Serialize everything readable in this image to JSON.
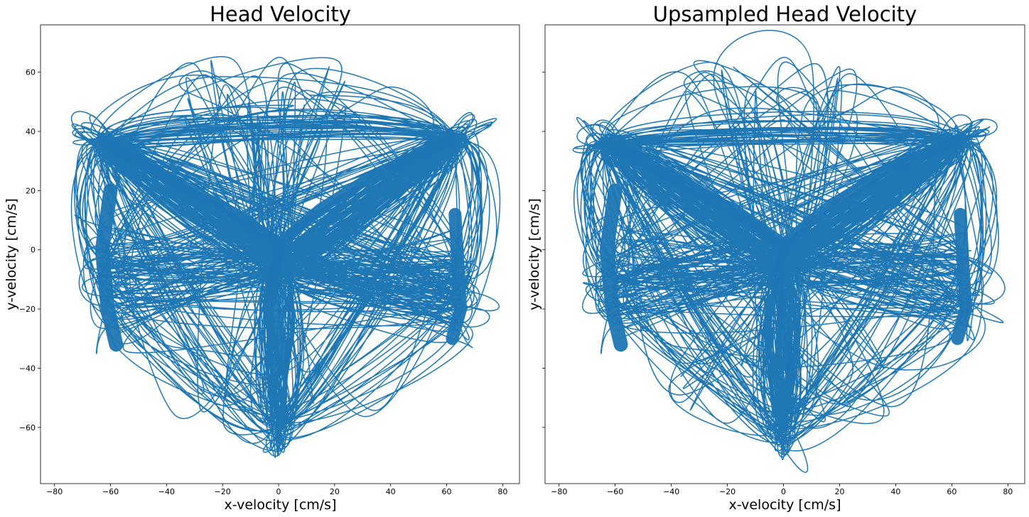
{
  "figure": {
    "colors": {
      "line": "#1f77b4",
      "axes": "#000000",
      "background": "#ffffff"
    }
  },
  "chart_data": [
    {
      "type": "line",
      "title": "Head Velocity",
      "xlabel": "x-velocity [cm/s]",
      "ylabel": "y-velocity [cm/s]",
      "xlim": [
        -85,
        86
      ],
      "ylim": [
        -79,
        76
      ],
      "xticks": [
        -80,
        -60,
        -40,
        -20,
        0,
        20,
        40,
        60,
        80
      ],
      "yticks": [
        -60,
        -40,
        -20,
        0,
        20,
        40,
        60
      ],
      "xtick_labels": [
        "−80",
        "−60",
        "−40",
        "−20",
        "0",
        "20",
        "40",
        "60",
        "80"
      ],
      "ytick_labels": [
        "−60",
        "−40",
        "−20",
        "0",
        "20",
        "40",
        "60"
      ],
      "show_ytick_labels": true,
      "grid": false,
      "series_color": "#1f77b4",
      "series": [
        {
          "name": "",
          "shape": "three-lobed velocity trajectory: arms from origin toward (-62,35), (62,37) and (0,-68); dense vertical bands near x=-62 and x=63 spanning y=-35..20",
          "x": [
            0,
            -30,
            -62,
            -70,
            -55,
            -62,
            -65,
            -60,
            -30,
            0,
            25,
            45,
            62,
            72,
            65,
            62,
            68,
            60,
            30,
            0,
            5,
            -3,
            2,
            0,
            -20,
            -45,
            -55,
            -50,
            -20,
            0,
            15,
            40,
            55,
            48,
            20,
            0,
            -10,
            -25,
            -35,
            -10,
            0
          ],
          "y": [
            0,
            18,
            36,
            30,
            0,
            -20,
            -35,
            -25,
            -10,
            0,
            15,
            28,
            37,
            30,
            5,
            -15,
            -30,
            -25,
            -10,
            0,
            -30,
            -55,
            -68,
            -40,
            -35,
            -30,
            -10,
            15,
            40,
            65,
            45,
            55,
            45,
            30,
            10,
            0,
            45,
            60,
            55,
            40,
            0
          ]
        }
      ]
    },
    {
      "type": "line",
      "title": "Upsampled Head Velocity",
      "xlabel": "x-velocity [cm/s]",
      "ylabel": "y-velocity [cm/s]",
      "xlim": [
        -85,
        86
      ],
      "ylim": [
        -79,
        76
      ],
      "xticks": [
        -80,
        -60,
        -40,
        -20,
        0,
        20,
        40,
        60,
        80
      ],
      "yticks": [
        -60,
        -40,
        -20,
        0,
        20,
        40,
        60
      ],
      "xtick_labels": [
        "−80",
        "−60",
        "−40",
        "−20",
        "0",
        "20",
        "40",
        "60",
        "80"
      ],
      "ytick_labels": [
        "",
        "",
        "",
        "",
        "",
        "",
        ""
      ],
      "show_ytick_labels": false,
      "shared_y": true,
      "grid": false,
      "series_color": "#1f77b4",
      "series": [
        {
          "name": "",
          "shape": "same trajectory as the left panel, smoothly upsampled",
          "x": [
            0,
            -30,
            -62,
            -70,
            -55,
            -62,
            -65,
            -60,
            -30,
            0,
            25,
            45,
            62,
            72,
            65,
            62,
            68,
            60,
            30,
            0,
            5,
            -3,
            2,
            0,
            -20,
            -45,
            -55,
            -50,
            -20,
            0,
            15,
            40,
            55,
            48,
            20,
            0,
            -10,
            -25,
            -35,
            -10,
            0
          ],
          "y": [
            0,
            18,
            36,
            30,
            0,
            -20,
            -35,
            -25,
            -10,
            0,
            15,
            28,
            37,
            30,
            5,
            -15,
            -30,
            -25,
            -10,
            0,
            -30,
            -55,
            -68,
            -40,
            -35,
            -30,
            -10,
            15,
            40,
            65,
            45,
            55,
            45,
            30,
            10,
            0,
            45,
            60,
            55,
            40,
            0
          ]
        }
      ]
    }
  ]
}
